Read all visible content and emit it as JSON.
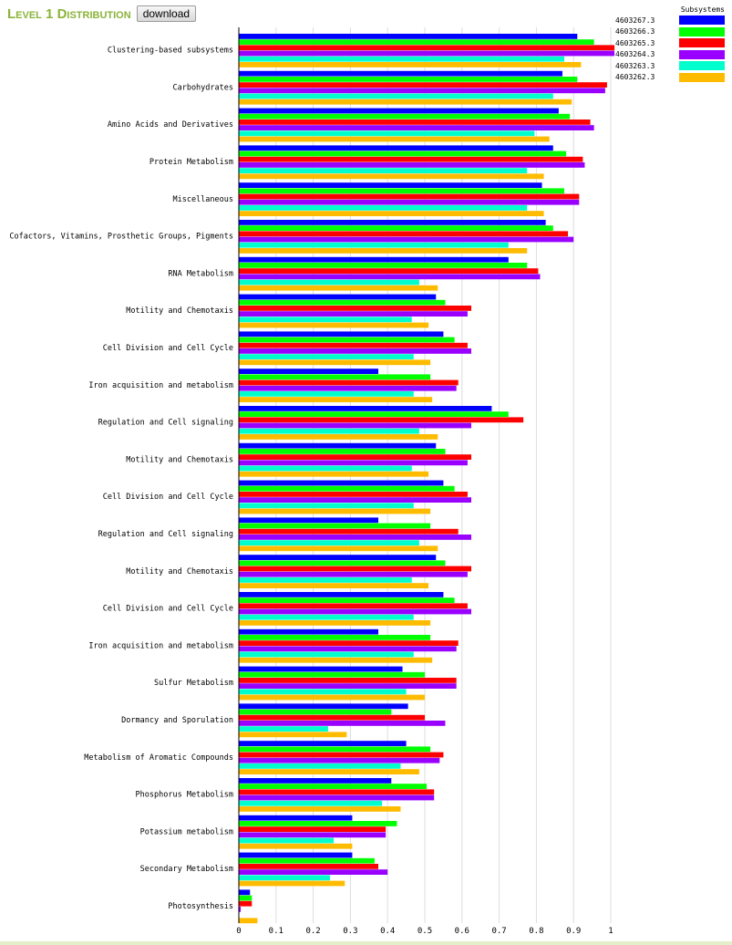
{
  "header": {
    "title": "Level 1 Distribution",
    "download_label": "download"
  },
  "legend": {
    "title": "Subsystems"
  },
  "chart_data": {
    "type": "bar",
    "orientation": "horizontal",
    "xlim": [
      0,
      1
    ],
    "xticks": [
      "0",
      "0.1",
      "0.2",
      "0.3",
      "0.4",
      "0.5",
      "0.6",
      "0.7",
      "0.8",
      "0.9",
      "1"
    ],
    "grid": "vertical",
    "legend_position": "top-right",
    "categories": [
      "Clustering-based subsystems",
      "Carbohydrates",
      "Amino Acids and Derivatives",
      "Protein Metabolism",
      "Miscellaneous",
      "Cofactors, Vitamins, Prosthetic Groups, Pigments",
      "RNA Metabolism",
      "Motility and Chemotaxis",
      "Cell Division and Cell Cycle",
      "Iron acquisition and metabolism",
      "Regulation and Cell signaling",
      "Motility and Chemotaxis",
      "Cell Division and Cell Cycle",
      "Regulation and Cell signaling",
      "Motility and Chemotaxis",
      "Cell Division and Cell Cycle",
      "Iron acquisition and metabolism",
      "Sulfur Metabolism",
      "Dormancy and Sporulation",
      "Metabolism of Aromatic Compounds",
      "Phosphorus Metabolism",
      "Potassium metabolism",
      "Secondary Metabolism",
      "Photosynthesis"
    ],
    "series": [
      {
        "name": "4603267.3",
        "color": "#0000ff",
        "values": [
          0.91,
          0.87,
          0.86,
          0.845,
          0.815,
          0.825,
          0.725,
          0.53,
          0.55,
          0.375,
          0.68,
          0.53,
          0.55,
          0.375,
          0.53,
          0.55,
          0.375,
          0.44,
          0.455,
          0.45,
          0.41,
          0.305,
          0.305,
          0.03
        ]
      },
      {
        "name": "4603266.3",
        "color": "#00ff00",
        "values": [
          0.955,
          0.91,
          0.89,
          0.88,
          0.875,
          0.845,
          0.775,
          0.555,
          0.58,
          0.515,
          0.725,
          0.555,
          0.58,
          0.515,
          0.555,
          0.58,
          0.515,
          0.5,
          0.41,
          0.515,
          0.505,
          0.425,
          0.365,
          0.035
        ]
      },
      {
        "name": "4603265.3",
        "color": "#ff0000",
        "values": [
          1.01,
          0.99,
          0.945,
          0.925,
          0.915,
          0.885,
          0.805,
          0.625,
          0.615,
          0.59,
          0.765,
          0.625,
          0.615,
          0.59,
          0.625,
          0.615,
          0.59,
          0.585,
          0.5,
          0.55,
          0.525,
          0.395,
          0.375,
          0.035
        ]
      },
      {
        "name": "4603264.3",
        "color": "#9900ff",
        "values": [
          1.01,
          0.985,
          0.955,
          0.93,
          0.915,
          0.9,
          0.81,
          0.615,
          0.625,
          0.585,
          0.625,
          0.615,
          0.625,
          0.625,
          0.615,
          0.625,
          0.585,
          0.585,
          0.555,
          0.54,
          0.525,
          0.395,
          0.4,
          0.005
        ]
      },
      {
        "name": "4603263.3",
        "color": "#00ffcc",
        "values": [
          0.875,
          0.845,
          0.795,
          0.775,
          0.775,
          0.725,
          0.485,
          0.465,
          0.47,
          0.47,
          0.485,
          0.465,
          0.47,
          0.485,
          0.465,
          0.47,
          0.47,
          0.45,
          0.24,
          0.435,
          0.385,
          0.255,
          0.245,
          0.0
        ]
      },
      {
        "name": "4603262.3",
        "color": "#ffbb00",
        "values": [
          0.92,
          0.895,
          0.835,
          0.82,
          0.82,
          0.775,
          0.535,
          0.51,
          0.515,
          0.52,
          0.535,
          0.51,
          0.515,
          0.535,
          0.51,
          0.515,
          0.52,
          0.5,
          0.29,
          0.485,
          0.435,
          0.305,
          0.285,
          0.05
        ]
      }
    ]
  }
}
